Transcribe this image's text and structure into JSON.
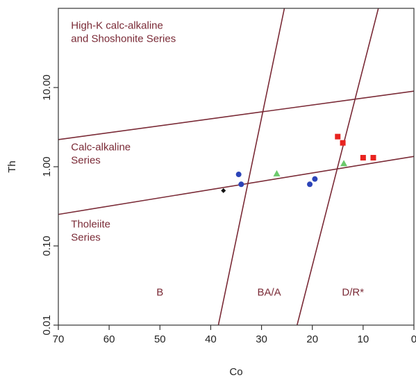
{
  "chart_data": {
    "type": "scatter",
    "title": "",
    "xlabel": "Co",
    "ylabel": "Th",
    "xlim": [
      70,
      0
    ],
    "ylim": [
      0.01,
      100
    ],
    "x_reversed": true,
    "y_scale": "log",
    "grid": false,
    "x_ticks": [
      {
        "value": 70,
        "label": "70"
      },
      {
        "value": 60,
        "label": "60"
      },
      {
        "value": 50,
        "label": "50"
      },
      {
        "value": 40,
        "label": "40"
      },
      {
        "value": 30,
        "label": "30"
      },
      {
        "value": 20,
        "label": "20"
      },
      {
        "value": 10,
        "label": "10"
      },
      {
        "value": 0,
        "label": "0"
      }
    ],
    "y_ticks": [
      {
        "value": 0.01,
        "label": "0.01"
      },
      {
        "value": 0.1,
        "label": "0.10"
      },
      {
        "value": 1,
        "label": "1.00"
      },
      {
        "value": 10,
        "label": "10.00"
      }
    ],
    "boundary_color": "#7a2a36",
    "label_color": "#7a2a36",
    "boundaries": [
      {
        "name": "calc-alkaline-high-k",
        "points": [
          [
            70,
            2.2
          ],
          [
            0,
            9.0
          ]
        ]
      },
      {
        "name": "tholeiite-calc-alkaline",
        "points": [
          [
            70,
            0.25
          ],
          [
            0,
            1.35
          ]
        ]
      },
      {
        "name": "b-ba-a",
        "points": [
          [
            38.5,
            0.01
          ],
          [
            25.5,
            100
          ]
        ]
      },
      {
        "name": "ba-a-d-r",
        "points": [
          [
            23,
            0.01
          ],
          [
            7,
            100
          ]
        ]
      }
    ],
    "region_labels": [
      {
        "lines": [
          "High-K calc-alkaline",
          "and Shoshonite Series"
        ],
        "x": 67.5,
        "y": 55
      },
      {
        "lines": [
          "Calc-alkaline",
          "Series"
        ],
        "x": 67.5,
        "y": 1.6
      },
      {
        "lines": [
          "Tholeiite",
          "Series"
        ],
        "x": 67.5,
        "y": 0.17
      },
      {
        "lines": [
          "B"
        ],
        "x": 50,
        "y": 0.0235
      },
      {
        "lines": [
          "BA/A"
        ],
        "x": 28.5,
        "y": 0.0235
      },
      {
        "lines": [
          "D/R*"
        ],
        "x": 12,
        "y": 0.0235
      }
    ],
    "series": [
      {
        "marker": "square",
        "color": "#e8231f",
        "points": [
          [
            15,
            2.4
          ],
          [
            14,
            2.0
          ],
          [
            10,
            1.3
          ],
          [
            8,
            1.3
          ]
        ]
      },
      {
        "marker": "circle",
        "color": "#2c44b8",
        "points": [
          [
            34.5,
            0.8
          ],
          [
            34,
            0.6
          ],
          [
            20.5,
            0.6
          ],
          [
            19.5,
            0.7
          ]
        ]
      },
      {
        "marker": "triangle",
        "color": "#6cc96c",
        "points": [
          [
            27,
            0.82
          ],
          [
            13.8,
            1.1
          ]
        ]
      },
      {
        "marker": "diamond",
        "color": "#111111",
        "points": [
          [
            37.5,
            0.5
          ]
        ]
      }
    ]
  }
}
